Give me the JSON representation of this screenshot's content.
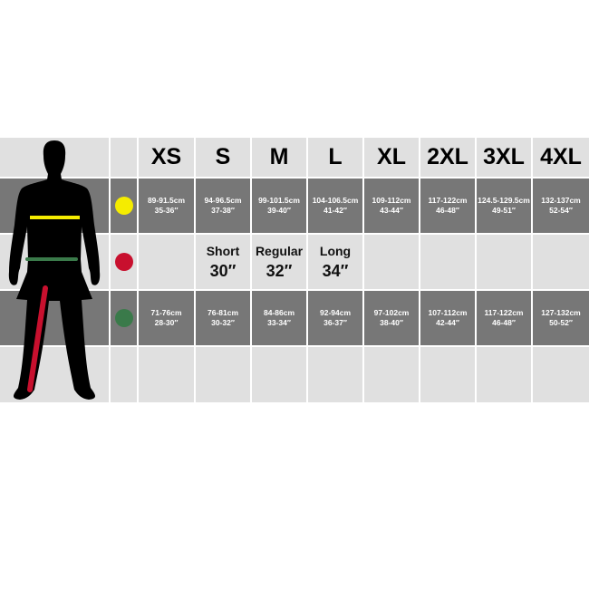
{
  "sizes": [
    "XS",
    "S",
    "M",
    "L",
    "XL",
    "2XL",
    "3XL",
    "4XL"
  ],
  "rows": [
    {
      "marker": "yellow-dot",
      "color": "#f5ec00",
      "cm": [
        "89-91.5cm",
        "94-96.5cm",
        "99-101.5cm",
        "104-106.5cm",
        "109-112cm",
        "117-122cm",
        "124.5-129.5cm",
        "132-137cm"
      ],
      "in": [
        "35-36″",
        "37-38″",
        "39-40″",
        "41-42″",
        "43-44″",
        "46-48″",
        "49-51″",
        "52-54″"
      ]
    },
    {
      "marker": "red-dot",
      "color": "#c8102e",
      "legs": [
        {
          "name": "Short",
          "len": "30″"
        },
        {
          "name": "Regular",
          "len": "32″"
        },
        {
          "name": "Long",
          "len": "34″"
        }
      ]
    },
    {
      "marker": "green-dot",
      "color": "#3a7a4a",
      "cm": [
        "71-76cm",
        "76-81cm",
        "84-86cm",
        "92-94cm",
        "97-102cm",
        "107-112cm",
        "117-122cm",
        "127-132cm"
      ],
      "in": [
        "28-30″",
        "30-32″",
        "33-34″",
        "36-37″",
        "38-40″",
        "42-44″",
        "46-48″",
        "50-52″"
      ]
    }
  ]
}
